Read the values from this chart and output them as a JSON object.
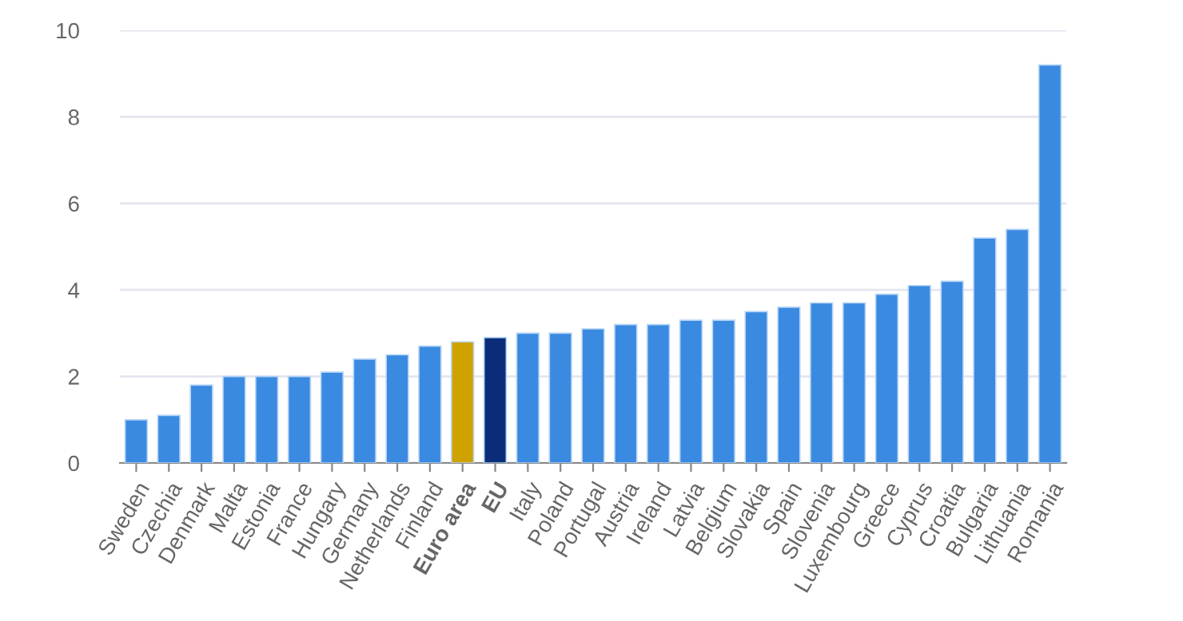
{
  "chart_data": {
    "type": "bar",
    "categories": [
      "Sweden",
      "Czechia",
      "Denmark",
      "Malta",
      "Estonia",
      "France",
      "Hungary",
      "Germany",
      "Netherlands",
      "Finland",
      "Euro area",
      "EU",
      "Italy",
      "Poland",
      "Portugal",
      "Austria",
      "Ireland",
      "Latvia",
      "Belgium",
      "Slovakia",
      "Spain",
      "Slovenia",
      "Luxembourg",
      "Greece",
      "Cyprus",
      "Croatia",
      "Bulgaria",
      "Lithuania",
      "Romania"
    ],
    "values": [
      1.0,
      1.1,
      1.8,
      2.0,
      2.0,
      2.0,
      2.1,
      2.4,
      2.5,
      2.7,
      2.8,
      2.9,
      3.0,
      3.0,
      3.1,
      3.2,
      3.2,
      3.3,
      3.3,
      3.5,
      3.6,
      3.7,
      3.7,
      3.9,
      4.1,
      4.2,
      5.2,
      5.4,
      9.2
    ],
    "colors": [
      "#3a8ae2",
      "#3a8ae2",
      "#3a8ae2",
      "#3a8ae2",
      "#3a8ae2",
      "#3a8ae2",
      "#3a8ae2",
      "#3a8ae2",
      "#3a8ae2",
      "#3a8ae2",
      "#cfa200",
      "#0b2d79",
      "#3a8ae2",
      "#3a8ae2",
      "#3a8ae2",
      "#3a8ae2",
      "#3a8ae2",
      "#3a8ae2",
      "#3a8ae2",
      "#3a8ae2",
      "#3a8ae2",
      "#3a8ae2",
      "#3a8ae2",
      "#3a8ae2",
      "#3a8ae2",
      "#3a8ae2",
      "#3a8ae2",
      "#3a8ae2",
      "#3a8ae2"
    ],
    "ylim": [
      0,
      10
    ],
    "yticks": [
      0,
      2,
      4,
      6,
      8,
      10
    ],
    "grid": "y"
  }
}
